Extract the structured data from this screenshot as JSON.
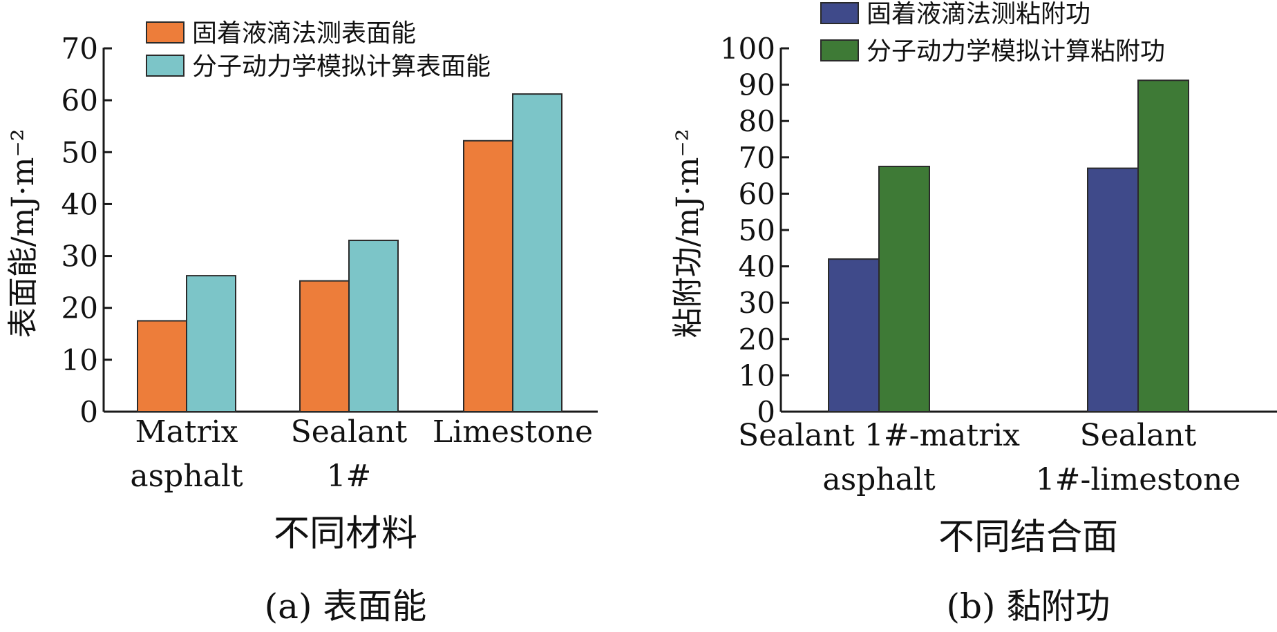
{
  "chart_data": [
    {
      "type": "bar",
      "categories": [
        [
          "Matrix",
          "asphalt"
        ],
        [
          "Sealant",
          "1#"
        ],
        [
          "Limestone"
        ]
      ],
      "series": [
        {
          "name": "固着液滴法测表面能",
          "color": "#ED7D3A",
          "values": [
            17.5,
            25.2,
            52.2
          ]
        },
        {
          "name": "分子动力学模拟计算表面能",
          "color": "#7CC5C8",
          "values": [
            26.2,
            33.0,
            61.2
          ]
        }
      ],
      "ylabel": "表面能/mJ·m⁻²",
      "xlabel": "不同材料",
      "caption": "(a) 表面能",
      "ylim": [
        0,
        70
      ],
      "yticks": [
        0,
        10,
        20,
        30,
        40,
        50,
        60,
        70
      ],
      "grid": false,
      "legend": "top-left"
    },
    {
      "type": "bar",
      "categories": [
        [
          "Sealant 1#-matrix",
          "asphalt"
        ],
        [
          "Sealant",
          "1#-limestone"
        ]
      ],
      "series": [
        {
          "name": "固着液滴法测粘附功",
          "color": "#3F4A8A",
          "values": [
            42.0,
            67.0
          ]
        },
        {
          "name": "分子动力学模拟计算粘附功",
          "color": "#3E7A36",
          "values": [
            67.5,
            91.2
          ]
        }
      ],
      "ylabel": "粘附功/mJ·m⁻²",
      "xlabel": "不同结合面",
      "caption": "(b) 黏附功",
      "ylim": [
        0,
        100
      ],
      "yticks": [
        0,
        10,
        20,
        30,
        40,
        50,
        60,
        70,
        80,
        90,
        100
      ],
      "grid": false,
      "legend": "top-left"
    }
  ]
}
